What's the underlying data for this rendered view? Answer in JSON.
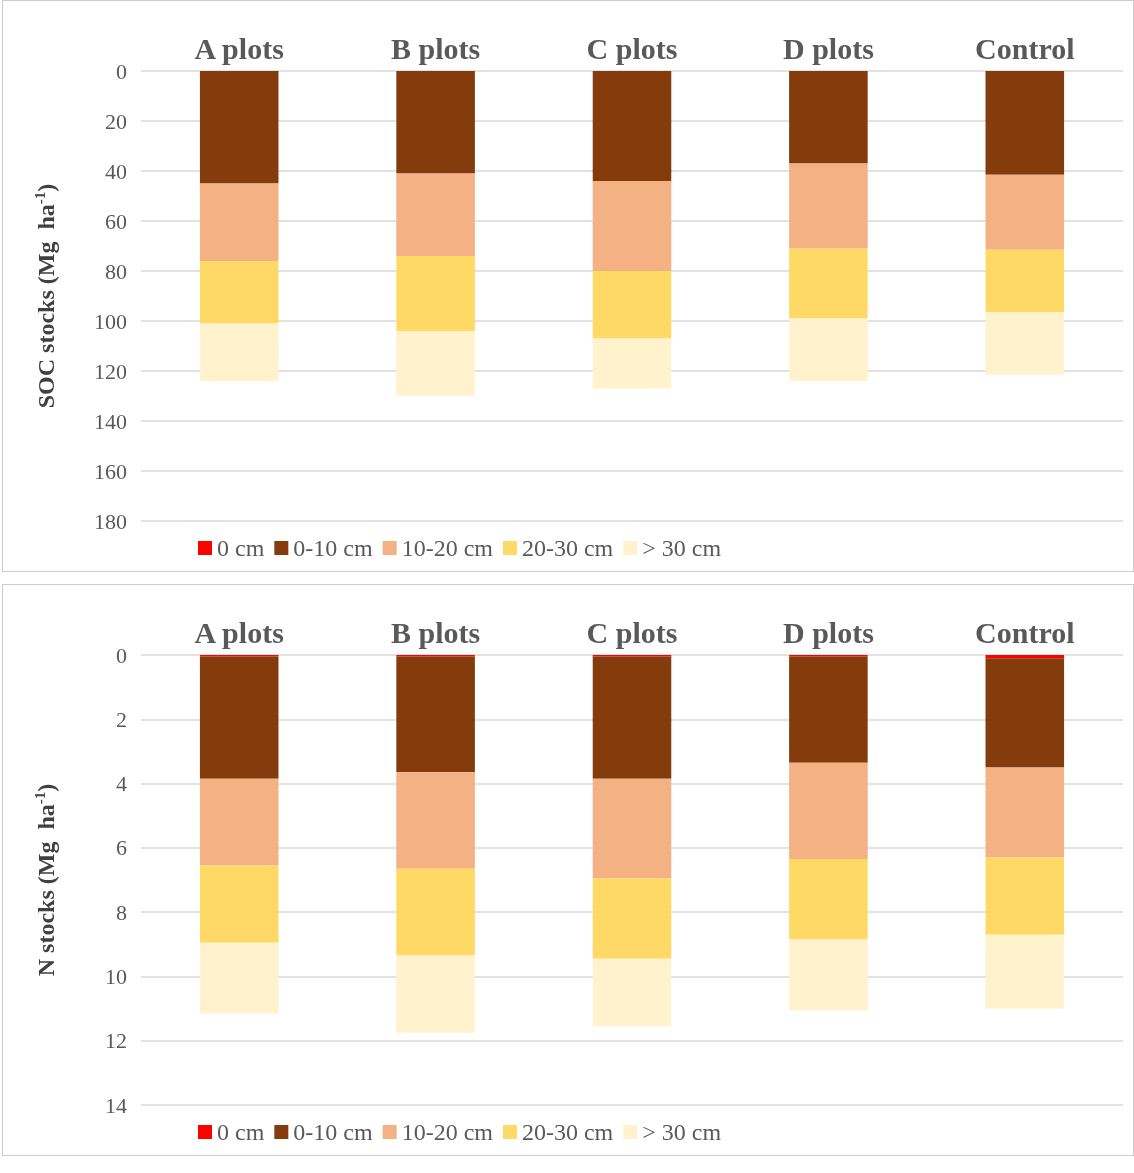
{
  "chart_data": [
    {
      "type": "bar",
      "stacked": true,
      "ylabel": "SOC stocks (Mg  ha$^{-1}$)",
      "categories": [
        "A plots",
        "B plots",
        "C plots",
        "D plots",
        "Control"
      ],
      "series": [
        {
          "name": "0 cm",
          "color": "#ff0000",
          "values": [
            0,
            0,
            0,
            0,
            0
          ]
        },
        {
          "name": "0-10 cm",
          "color": "#843c0c",
          "values": [
            45,
            41,
            44,
            37,
            41.5
          ]
        },
        {
          "name": "10-20 cm",
          "color": "#f4b183",
          "values": [
            31,
            33,
            36,
            34,
            30
          ]
        },
        {
          "name": "20-30 cm",
          "color": "#ffd966",
          "values": [
            25,
            30,
            27,
            28,
            25
          ]
        },
        {
          "name": "> 30 cm",
          "color": "#fff2cc",
          "values": [
            23,
            26,
            20,
            25,
            25
          ]
        }
      ],
      "ylim": [
        180,
        0
      ],
      "yticks": [
        0,
        20,
        40,
        60,
        80,
        100,
        120,
        140,
        160,
        180
      ],
      "grid": "y",
      "legend": "bottom left"
    },
    {
      "type": "bar",
      "stacked": true,
      "ylabel": "N stocks (Mg  ha$^{-1}$)",
      "categories": [
        "A plots",
        "B plots",
        "C plots",
        "D plots",
        "Control"
      ],
      "series": [
        {
          "name": "0 cm",
          "color": "#ff0000",
          "values": [
            0.05,
            0.05,
            0.05,
            0.05,
            0.1
          ]
        },
        {
          "name": "0-10 cm",
          "color": "#843c0c",
          "values": [
            3.8,
            3.6,
            3.8,
            3.3,
            3.4
          ]
        },
        {
          "name": "10-20 cm",
          "color": "#f4b183",
          "values": [
            2.7,
            3.0,
            3.1,
            3.0,
            2.8
          ]
        },
        {
          "name": "20-30 cm",
          "color": "#ffd966",
          "values": [
            2.4,
            2.7,
            2.5,
            2.5,
            2.4
          ]
        },
        {
          "name": "> 30 cm",
          "color": "#fff2cc",
          "values": [
            2.2,
            2.4,
            2.1,
            2.2,
            2.3
          ]
        }
      ],
      "ylim": [
        14,
        0
      ],
      "yticks": [
        0,
        2,
        4,
        6,
        8,
        10,
        12,
        14
      ],
      "grid": "y",
      "legend": "bottom left"
    }
  ]
}
